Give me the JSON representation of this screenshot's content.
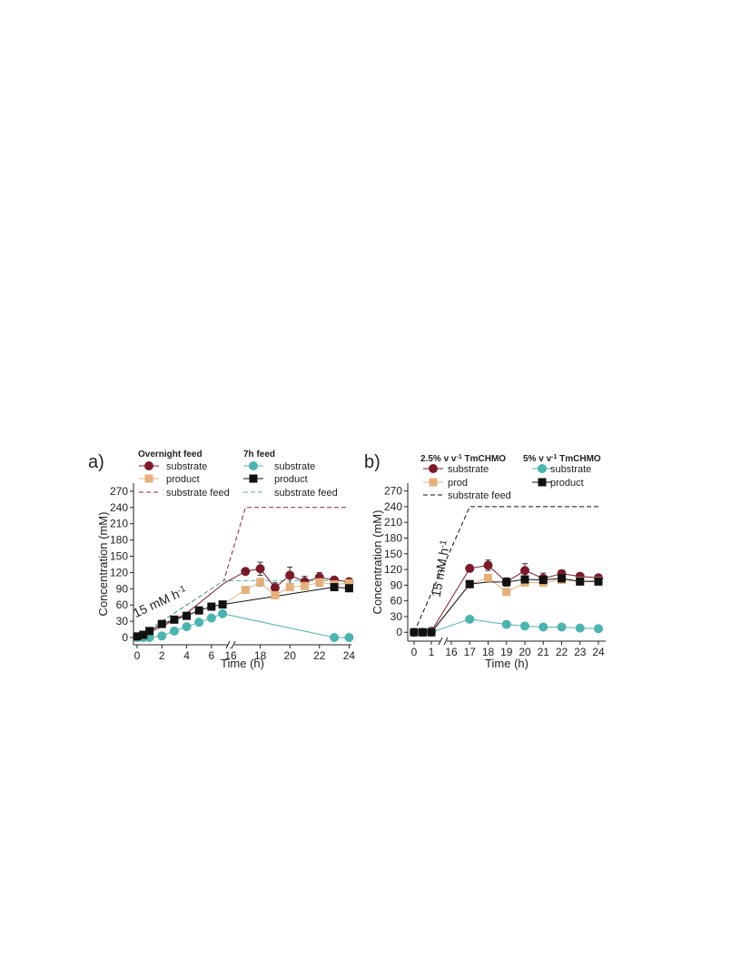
{
  "chart_data": [
    {
      "type": "line",
      "panel_label": "a)",
      "xlabel": "Time (h)",
      "ylabel": "Concentration (mM)",
      "ylim": [
        0,
        285
      ],
      "y_ticks": [
        0,
        30,
        60,
        90,
        120,
        150,
        180,
        210,
        240,
        270
      ],
      "x_ticks": [
        "0",
        "2",
        "4",
        "6",
        "16",
        "18",
        "20",
        "22",
        "24"
      ],
      "x_break": true,
      "annotation": {
        "base": "15 mM h",
        "sup": "-1"
      },
      "legend_groups": [
        {
          "title": "Overnight feed",
          "entries": [
            "substrate",
            "product",
            "substrate feed"
          ]
        },
        {
          "title": "7h feed",
          "entries": [
            "substrate",
            "product",
            "substrate feed"
          ]
        }
      ],
      "series": [
        {
          "name": "substrate",
          "group": "Overnight feed",
          "kind": "markers",
          "marker": "circle",
          "color": "#7b1b2a",
          "points": [
            [
              17,
              122
            ],
            [
              18,
              127
            ],
            [
              19,
              92
            ],
            [
              20,
              115
            ],
            [
              21,
              103
            ],
            [
              22,
              111
            ],
            [
              23,
              106
            ],
            [
              24,
              103
            ]
          ],
          "errors": [
            4,
            12,
            9,
            15,
            10,
            9,
            4,
            4
          ]
        },
        {
          "name": "product",
          "group": "Overnight feed",
          "kind": "markers",
          "marker": "square",
          "color": "#e6b07c",
          "points": [
            [
              17,
              88
            ],
            [
              18,
              102
            ],
            [
              19,
              78
            ],
            [
              20,
              93
            ],
            [
              21,
              95
            ],
            [
              22,
              102
            ],
            [
              23,
              98
            ],
            [
              24,
              100
            ]
          ],
          "errors": [
            6,
            7,
            5,
            6,
            5,
            7,
            5,
            4
          ]
        },
        {
          "name": "substrate feed",
          "group": "Overnight feed",
          "kind": "dashed",
          "color": "#8a2434",
          "points": [
            [
              0,
              0
            ],
            [
              7,
              105
            ],
            [
              17,
              240
            ],
            [
              24,
              240
            ]
          ]
        },
        {
          "name": "substrate",
          "group": "7h feed",
          "kind": "markers",
          "marker": "circle",
          "color": "#4cb3b0",
          "points": [
            [
              0,
              0
            ],
            [
              0.5,
              0
            ],
            [
              1,
              0
            ],
            [
              2,
              3
            ],
            [
              3,
              12
            ],
            [
              4,
              20
            ],
            [
              5,
              28
            ],
            [
              6,
              36
            ],
            [
              6.9,
              44
            ],
            [
              23,
              0
            ],
            [
              24,
              0
            ]
          ],
          "errors": [
            3,
            3,
            3,
            4,
            4,
            4,
            4,
            5,
            5,
            3,
            3
          ]
        },
        {
          "name": "product",
          "group": "7h feed",
          "kind": "markers",
          "marker": "square",
          "color": "#111111",
          "points": [
            [
              0,
              2
            ],
            [
              0.5,
              5
            ],
            [
              1,
              12
            ],
            [
              2,
              25
            ],
            [
              3,
              33
            ],
            [
              4,
              40
            ],
            [
              5,
              50
            ],
            [
              6,
              57
            ],
            [
              6.9,
              61
            ],
            [
              23,
              93
            ],
            [
              24,
              91
            ]
          ],
          "errors": [
            3,
            3,
            3,
            4,
            4,
            4,
            4,
            4,
            4,
            4,
            4
          ]
        },
        {
          "name": "substrate feed",
          "group": "7h feed",
          "kind": "dashed",
          "color": "#4cb3b0",
          "points": [
            [
              0,
              0
            ],
            [
              7,
              105
            ],
            [
              17,
              105
            ],
            [
              24,
              105
            ]
          ]
        },
        {
          "kind": "line",
          "color": "#7b1b2a",
          "points": [
            [
              0,
              0
            ],
            [
              2,
              20
            ],
            [
              4,
              45
            ],
            [
              7,
              100
            ],
            [
              17,
              122
            ],
            [
              18,
              127
            ],
            [
              19,
              92
            ],
            [
              20,
              115
            ],
            [
              21,
              103
            ],
            [
              22,
              111
            ],
            [
              23,
              106
            ],
            [
              24,
              103
            ]
          ]
        },
        {
          "kind": "line",
          "color": "#e6b07c",
          "points": [
            [
              7,
              62
            ],
            [
              17,
              88
            ],
            [
              18,
              102
            ],
            [
              19,
              78
            ],
            [
              20,
              93
            ],
            [
              21,
              95
            ],
            [
              22,
              102
            ],
            [
              23,
              98
            ],
            [
              24,
              100
            ]
          ]
        },
        {
          "kind": "line",
          "color": "#4cb3b0",
          "points": [
            [
              0,
              0
            ],
            [
              0.5,
              0
            ],
            [
              1,
              0
            ],
            [
              2,
              3
            ],
            [
              3,
              12
            ],
            [
              4,
              20
            ],
            [
              5,
              28
            ],
            [
              6,
              36
            ],
            [
              6.9,
              44
            ],
            [
              23,
              0
            ],
            [
              24,
              0
            ]
          ]
        },
        {
          "kind": "line",
          "color": "#111111",
          "points": [
            [
              0,
              2
            ],
            [
              0.5,
              5
            ],
            [
              1,
              12
            ],
            [
              2,
              25
            ],
            [
              3,
              33
            ],
            [
              4,
              40
            ],
            [
              5,
              50
            ],
            [
              6,
              57
            ],
            [
              6.9,
              61
            ],
            [
              23,
              93
            ],
            [
              24,
              91
            ]
          ]
        }
      ]
    },
    {
      "type": "line",
      "panel_label": "b)",
      "xlabel": "Time (h)",
      "ylabel": "Concentration (mM)",
      "ylim": [
        -10,
        285
      ],
      "y_ticks": [
        0,
        30,
        60,
        90,
        120,
        150,
        180,
        210,
        240,
        270
      ],
      "x_ticks": [
        "0",
        "1",
        "16",
        "17",
        "18",
        "19",
        "20",
        "21",
        "22",
        "23",
        "24"
      ],
      "x_break": true,
      "annotation": {
        "base": "15 mM h",
        "sup": "-1"
      },
      "legend_groups": [
        {
          "title_base": "2.5% v v",
          "title_sup": "-1",
          "title_rest": " TmCHMO",
          "entries": [
            "substrate",
            "prod",
            "substrate feed"
          ]
        },
        {
          "title_base": "5% v v",
          "title_sup": "-1",
          "title_rest": " TmCHMO",
          "entries": [
            "substrate",
            "product"
          ]
        }
      ],
      "series": [
        {
          "name": "substrate",
          "group": "2.5% TmCHMO",
          "kind": "markers",
          "marker": "circle",
          "color": "#7b1b2a",
          "points": [
            [
              0,
              0
            ],
            [
              0.5,
              0
            ],
            [
              1,
              2
            ],
            [
              17,
              122
            ],
            [
              18,
              128
            ],
            [
              19,
              96
            ],
            [
              20,
              118
            ],
            [
              21,
              103
            ],
            [
              22,
              112
            ],
            [
              23,
              107
            ],
            [
              24,
              104
            ]
          ],
          "errors": [
            2,
            2,
            2,
            4,
            10,
            8,
            13,
            10,
            7,
            4,
            3
          ]
        },
        {
          "name": "prod",
          "group": "2.5% TmCHMO",
          "kind": "markers",
          "marker": "square",
          "color": "#e6b07c",
          "points": [
            [
              0,
              0
            ],
            [
              0.5,
              0
            ],
            [
              1,
              0
            ],
            [
              17,
              92
            ],
            [
              18,
              104
            ],
            [
              19,
              77
            ],
            [
              20,
              95
            ],
            [
              21,
              95
            ],
            [
              22,
              100
            ],
            [
              23,
              98
            ],
            [
              24,
              98
            ]
          ],
          "errors": [
            2,
            2,
            2,
            4,
            6,
            5,
            7,
            6,
            5,
            4,
            4
          ]
        },
        {
          "name": "substrate feed",
          "group": "2.5% TmCHMO",
          "kind": "dashed",
          "color": "#111111",
          "points": [
            [
              0,
              0
            ],
            [
              17,
              240
            ],
            [
              24,
              240
            ]
          ]
        },
        {
          "name": "substrate",
          "group": "5% TmCHMO",
          "kind": "markers",
          "marker": "circle",
          "color": "#4cb3b0",
          "points": [
            [
              0,
              0
            ],
            [
              0.5,
              0
            ],
            [
              1,
              0
            ],
            [
              17,
              25
            ],
            [
              19,
              15
            ],
            [
              20,
              12
            ],
            [
              21,
              10
            ],
            [
              22,
              10
            ],
            [
              23,
              8
            ],
            [
              24,
              7
            ]
          ],
          "errors": [
            2,
            2,
            2,
            3,
            3,
            3,
            3,
            3,
            3,
            3
          ]
        },
        {
          "name": "product",
          "group": "5% TmCHMO",
          "kind": "markers",
          "marker": "square",
          "color": "#111111",
          "points": [
            [
              0,
              0
            ],
            [
              0.5,
              0
            ],
            [
              1,
              0
            ],
            [
              17,
              92
            ],
            [
              19,
              96
            ],
            [
              20,
              101
            ],
            [
              21,
              100
            ],
            [
              22,
              103
            ],
            [
              23,
              97
            ],
            [
              24,
              97
            ]
          ],
          "errors": [
            2,
            2,
            2,
            4,
            5,
            5,
            4,
            4,
            4,
            4
          ]
        },
        {
          "kind": "line",
          "color": "#7b1b2a",
          "points": [
            [
              0,
              0
            ],
            [
              0.5,
              0
            ],
            [
              1,
              2
            ],
            [
              17,
              122
            ],
            [
              18,
              128
            ],
            [
              19,
              96
            ],
            [
              20,
              118
            ],
            [
              21,
              103
            ],
            [
              22,
              112
            ],
            [
              23,
              107
            ],
            [
              24,
              104
            ]
          ]
        },
        {
          "kind": "line",
          "color": "#e6b07c",
          "points": [
            [
              0,
              0
            ],
            [
              0.5,
              0
            ],
            [
              1,
              0
            ],
            [
              17,
              92
            ],
            [
              18,
              104
            ],
            [
              19,
              77
            ],
            [
              20,
              95
            ],
            [
              21,
              95
            ],
            [
              22,
              100
            ],
            [
              23,
              98
            ],
            [
              24,
              98
            ]
          ]
        },
        {
          "kind": "line",
          "color": "#4cb3b0",
          "points": [
            [
              0,
              0
            ],
            [
              0.5,
              0
            ],
            [
              1,
              0
            ],
            [
              17,
              25
            ],
            [
              19,
              15
            ],
            [
              20,
              12
            ],
            [
              21,
              10
            ],
            [
              22,
              10
            ],
            [
              23,
              8
            ],
            [
              24,
              7
            ]
          ]
        },
        {
          "kind": "line",
          "color": "#111111",
          "points": [
            [
              0,
              0
            ],
            [
              0.5,
              0
            ],
            [
              1,
              0
            ],
            [
              17,
              92
            ],
            [
              18,
              96
            ],
            [
              19,
              96
            ],
            [
              20,
              101
            ],
            [
              21,
              100
            ],
            [
              22,
              103
            ],
            [
              23,
              97
            ],
            [
              24,
              97
            ]
          ]
        }
      ]
    }
  ]
}
